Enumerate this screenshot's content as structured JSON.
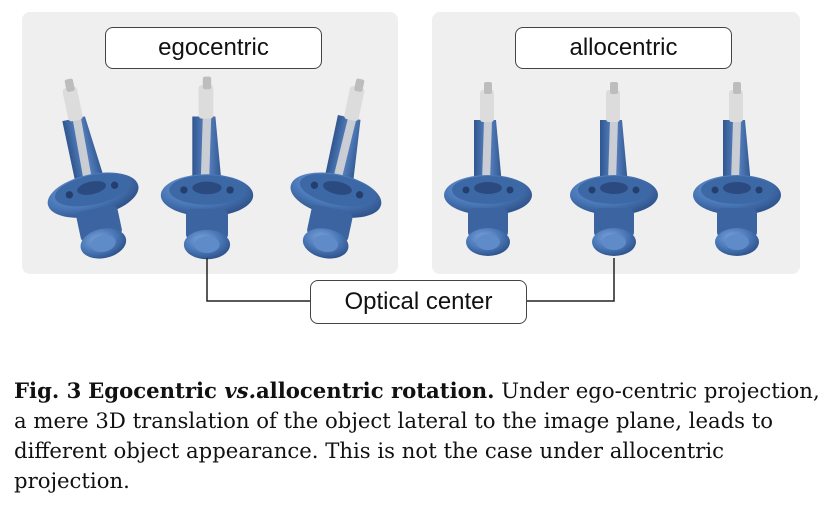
{
  "labels": {
    "egocentric": "egocentric",
    "allocentric": "allocentric",
    "optical_center": "Optical center"
  },
  "caption": {
    "fig": "Fig. 3",
    "title_part1": "Egocentric ",
    "title_vs": "vs.",
    "title_part2": "allocentric rotation.",
    "body": "Under ego-centric projection, a mere 3D translation of the object lateral to the image plane, leads to different object appearance. This is not the case under allocentric projection."
  },
  "colors": {
    "panel": "#efefef",
    "object_blue": "#4a78b8",
    "object_dark": "#2f5690",
    "object_light": "#6f98d0",
    "metal": "#d9d9d9"
  }
}
